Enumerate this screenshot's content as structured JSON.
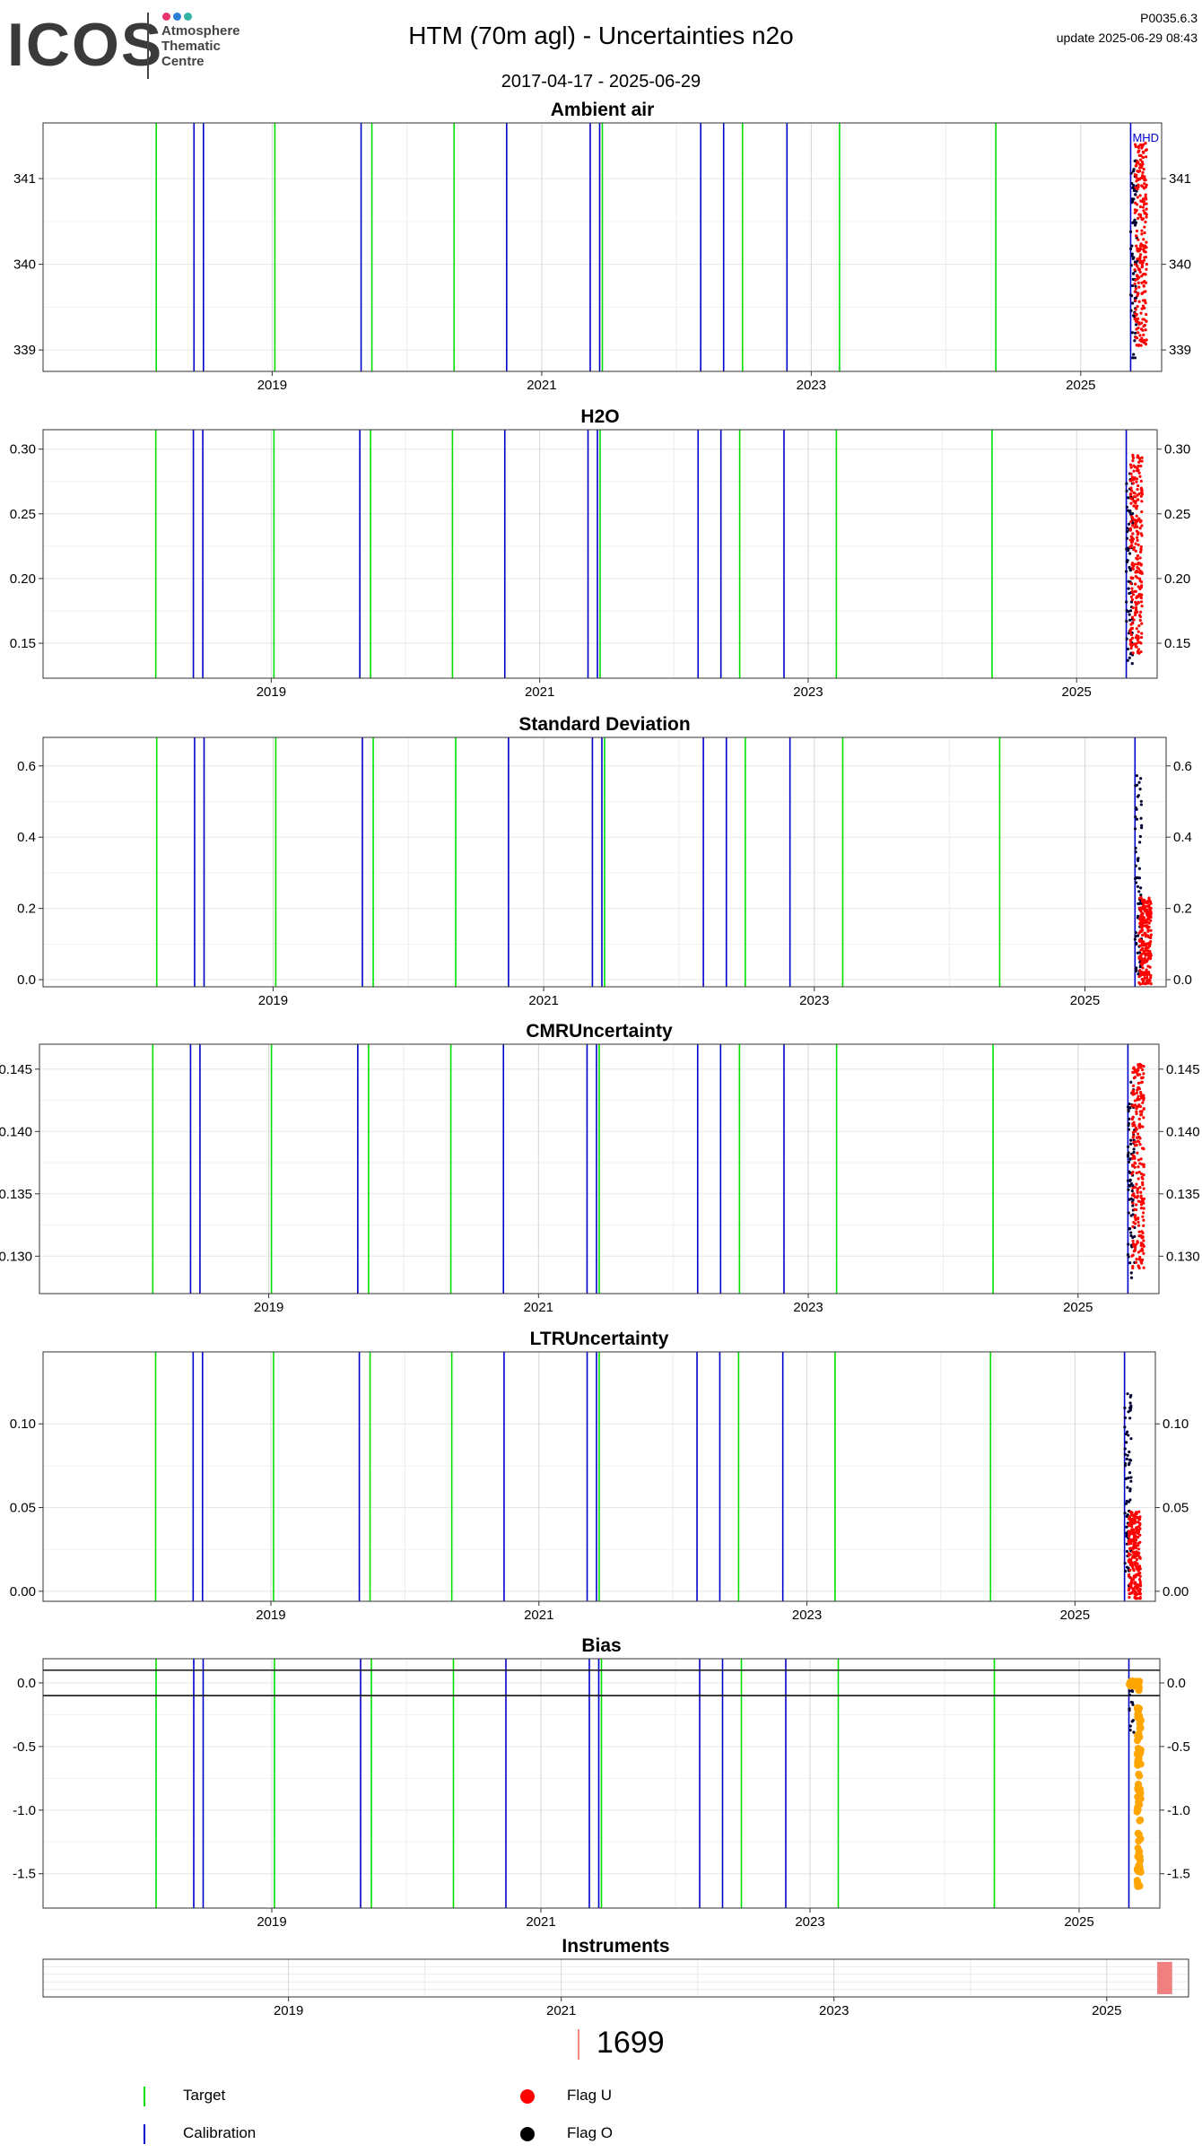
{
  "header": {
    "logo_text": "ICOS",
    "logo_lines": [
      "Atmosphere",
      "Thematic",
      "Centre"
    ],
    "logo_dot_colors": [
      "#e8336b",
      "#2a7fd4",
      "#33b3a6"
    ],
    "title": "HTM  (70m agl) - Uncertainties n2o",
    "date_range": "2017-04-17 - 2025-06-29",
    "version": "P0035.6.3",
    "update": "update  2025-06-29 08:43"
  },
  "colors": {
    "target": "#00e000",
    "calibration": "#0000cc",
    "flag_u": "#ff0000",
    "flag_o": "#000033",
    "bias_series": "#ffa500",
    "instrument": "#f08080"
  },
  "chart_data": [
    {
      "type": "scatter",
      "title": "Ambient air",
      "xlim": [
        2017.3,
        2025.6
      ],
      "ylim": [
        338.75,
        341.65
      ],
      "yticks": [
        339,
        340,
        341
      ],
      "ytick_labels": [
        "339",
        "340",
        "341"
      ],
      "xticks": [
        2019,
        2021,
        2023,
        2025
      ],
      "xtick_labels": [
        "2019",
        "2021",
        "2023",
        "2025"
      ],
      "annotation": "MHD",
      "grid": true
    },
    {
      "type": "scatter",
      "title": "H2O",
      "xlim": [
        2017.3,
        2025.6
      ],
      "ylim": [
        0.123,
        0.315
      ],
      "yticks": [
        0.15,
        0.2,
        0.25,
        0.3
      ],
      "ytick_labels": [
        "0.15",
        "0.20",
        "0.25",
        "0.30"
      ],
      "xticks": [
        2019,
        2021,
        2023,
        2025
      ],
      "xtick_labels": [
        "2019",
        "2021",
        "2023",
        "2025"
      ],
      "grid": true
    },
    {
      "type": "scatter",
      "title": "Standard Deviation",
      "xlim": [
        2017.3,
        2025.6
      ],
      "ylim": [
        -0.02,
        0.68
      ],
      "yticks": [
        0.0,
        0.2,
        0.4,
        0.6
      ],
      "ytick_labels": [
        "0.0",
        "0.2",
        "0.4",
        "0.6"
      ],
      "xticks": [
        2019,
        2021,
        2023,
        2025
      ],
      "xtick_labels": [
        "2019",
        "2021",
        "2023",
        "2025"
      ],
      "grid": true
    },
    {
      "type": "scatter",
      "title": "CMRUncertainty",
      "xlim": [
        2017.3,
        2025.6
      ],
      "ylim": [
        0.127,
        0.147
      ],
      "yticks": [
        0.13,
        0.135,
        0.14,
        0.145
      ],
      "ytick_labels": [
        "0.130",
        "0.135",
        "0.140",
        "0.145"
      ],
      "xticks": [
        2019,
        2021,
        2023,
        2025
      ],
      "xtick_labels": [
        "2019",
        "2021",
        "2023",
        "2025"
      ],
      "grid": true
    },
    {
      "type": "scatter",
      "title": "LTRUncertainty",
      "xlim": [
        2017.3,
        2025.6
      ],
      "ylim": [
        -0.006,
        0.143
      ],
      "yticks": [
        0.0,
        0.05,
        0.1
      ],
      "ytick_labels": [
        "0.00",
        "0.05",
        "0.10"
      ],
      "xticks": [
        2019,
        2021,
        2023,
        2025
      ],
      "xtick_labels": [
        "2019",
        "2021",
        "2023",
        "2025"
      ],
      "grid": true
    },
    {
      "type": "scatter",
      "title": "Bias",
      "xlim": [
        2017.3,
        2025.6
      ],
      "ylim": [
        -1.77,
        0.19
      ],
      "yticks": [
        0.0,
        -0.5,
        -1.0,
        -1.5
      ],
      "ytick_labels": [
        "0.0",
        "-0.5",
        "-1.0",
        "-1.5"
      ],
      "xticks": [
        2019,
        2021,
        2023,
        2025
      ],
      "xtick_labels": [
        "2019",
        "2021",
        "2023",
        "2025"
      ],
      "hlines": [
        0.1,
        -0.1
      ],
      "grid": true
    },
    {
      "type": "bar",
      "title": "Instruments",
      "xlim": [
        2017.2,
        2025.6
      ],
      "xticks": [
        2019,
        2021,
        2023,
        2025
      ],
      "xtick_labels": [
        "2019",
        "2021",
        "2023",
        "2025"
      ],
      "instrument_span": [
        2025.37,
        2025.48
      ],
      "instrument_id": "1699"
    }
  ],
  "events": {
    "target_dates": [
      2018.14,
      2019.02,
      2019.74,
      2020.35,
      2021.45,
      2022.49,
      2023.21,
      2024.37
    ],
    "calibration_dates": [
      2018.42,
      2018.49,
      2019.66,
      2020.74,
      2021.36,
      2021.43,
      2022.18,
      2022.35,
      2022.82,
      2025.37
    ]
  },
  "legend": [
    {
      "label": "Target",
      "kind": "line",
      "color": "#00e000"
    },
    {
      "label": "Calibration",
      "kind": "line",
      "color": "#0000cc"
    },
    {
      "label": "Flag U",
      "kind": "dot",
      "color": "#ff0000"
    },
    {
      "label": "Flag O",
      "kind": "dot",
      "color": "#000000"
    }
  ]
}
